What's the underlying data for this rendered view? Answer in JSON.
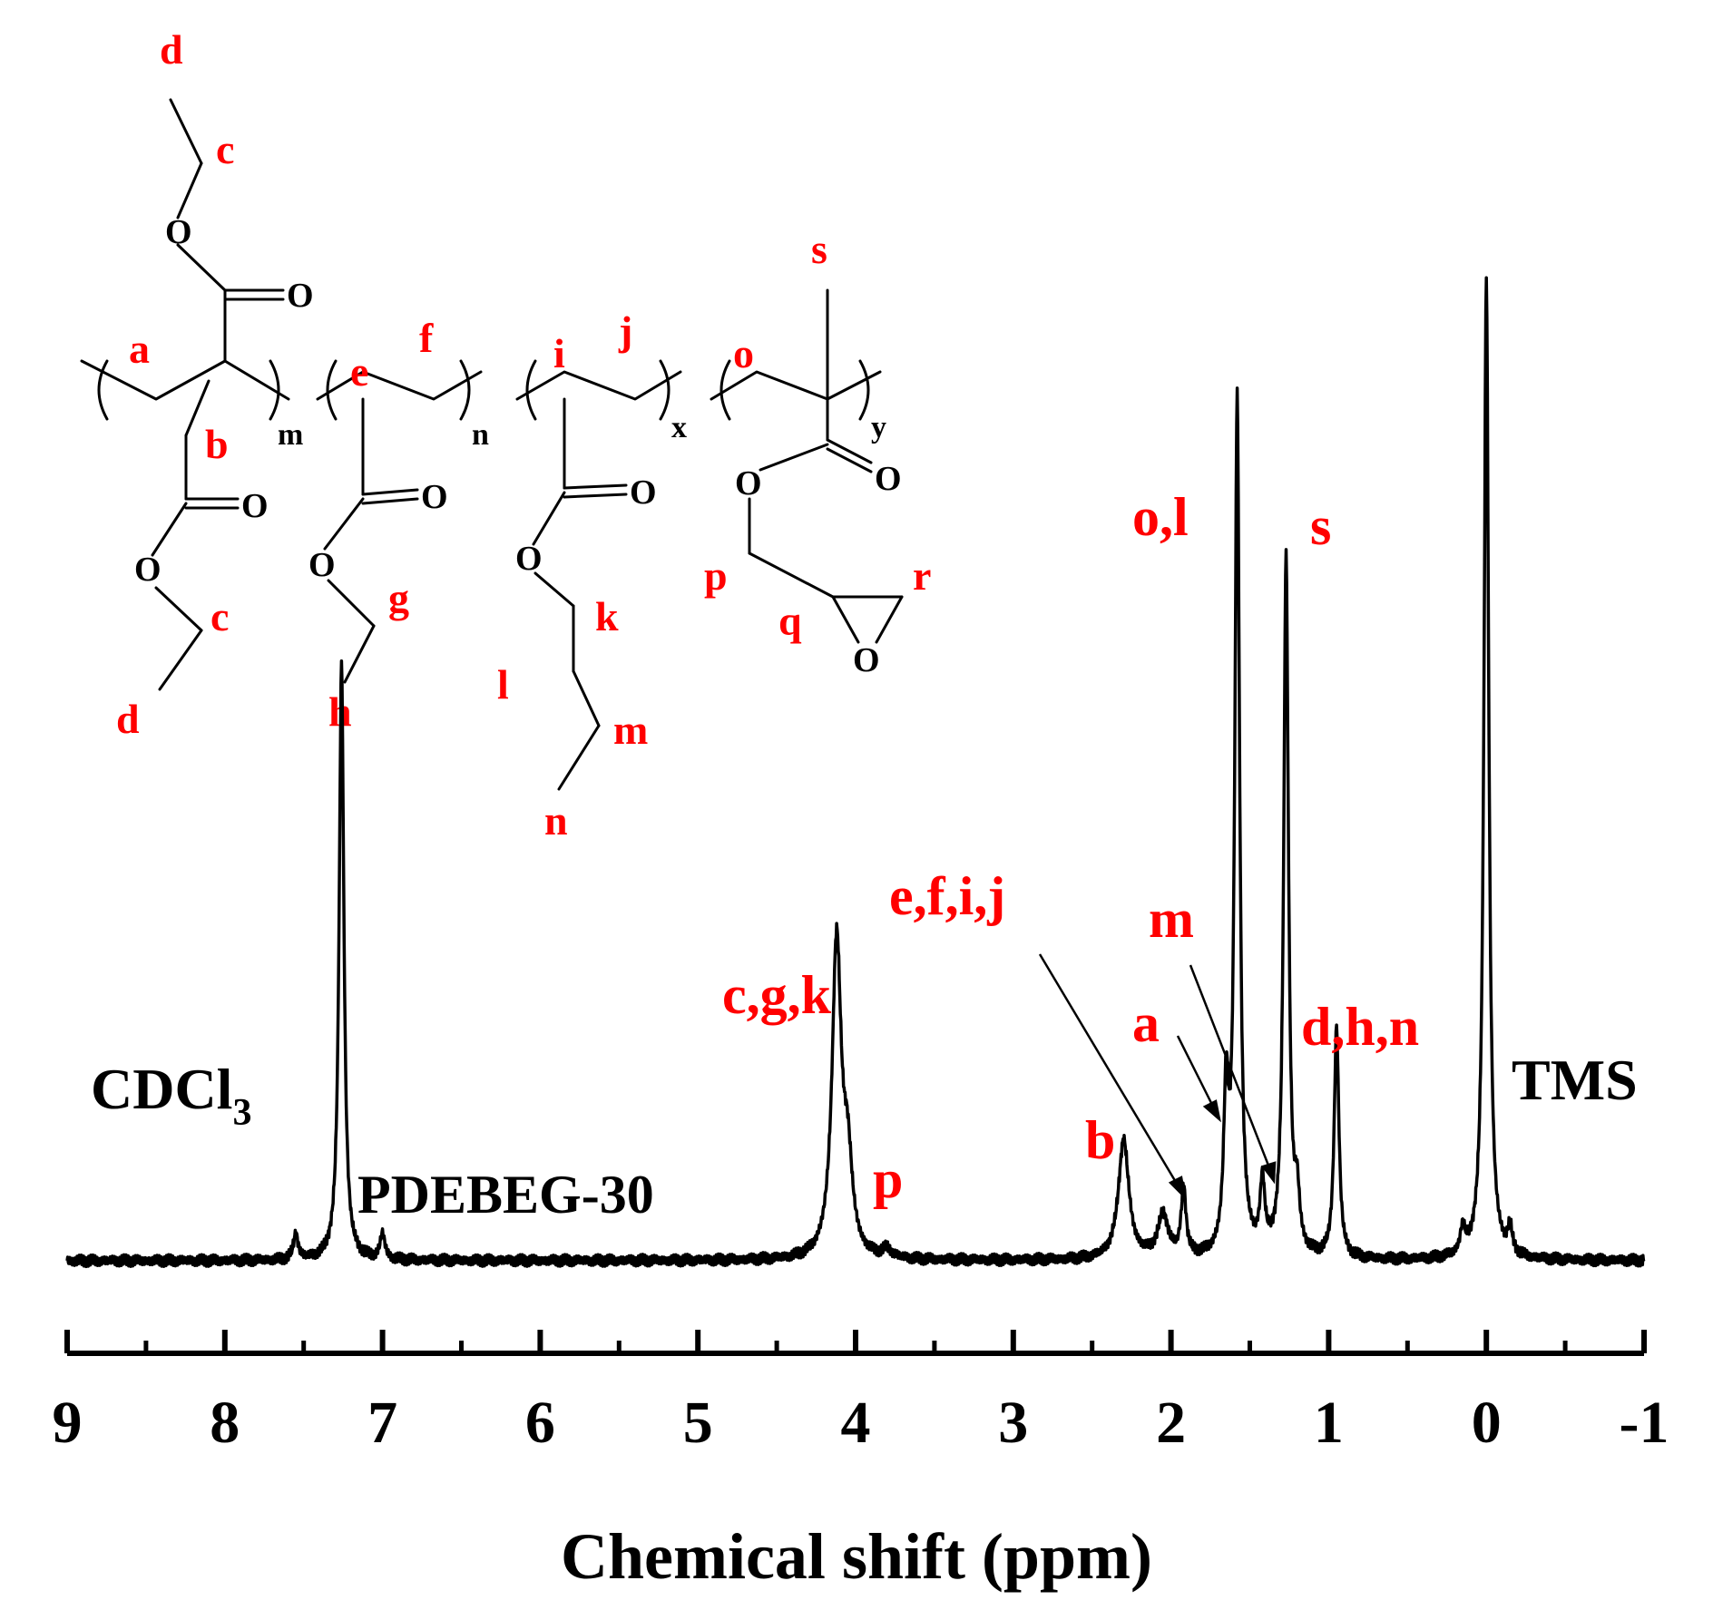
{
  "chart_data": {
    "type": "line",
    "title": "",
    "xlabel": "Chemical shift (ppm)",
    "ylabel": "",
    "xlim": [
      9,
      -1
    ],
    "x_reversed": true,
    "grid": false,
    "legend": "none",
    "xticks": [
      "9",
      "8",
      "7",
      "6",
      "5",
      "4",
      "3",
      "2",
      "1",
      "0",
      "-1"
    ],
    "sample_label": "PDEBEG-30",
    "solvent_label": "CDCl",
    "solvent_subscript": "3",
    "reference_label": "TMS",
    "line_color": "#000000",
    "label_color": "#ff0000",
    "peaks": [
      {
        "x": 7.26,
        "height": 0.7
      },
      {
        "x": 7.55,
        "height": 0.03
      },
      {
        "x": 7.0,
        "height": 0.03
      },
      {
        "x": 4.12,
        "height": 0.37
      },
      {
        "x": 4.05,
        "height": 0.1
      },
      {
        "x": 3.8,
        "height": 0.01
      },
      {
        "x": 2.3,
        "height": 0.14
      },
      {
        "x": 2.05,
        "height": 0.05
      },
      {
        "x": 1.92,
        "height": 0.08
      },
      {
        "x": 1.65,
        "height": 0.18
      },
      {
        "x": 1.58,
        "height": 1.0
      },
      {
        "x": 1.42,
        "height": 0.08
      },
      {
        "x": 1.27,
        "height": 0.82
      },
      {
        "x": 1.2,
        "height": 0.06
      },
      {
        "x": 0.95,
        "height": 0.27
      },
      {
        "x": 0.15,
        "height": 0.03
      },
      {
        "x": 0.0,
        "height": 1.15
      },
      {
        "x": -0.15,
        "height": 0.03
      }
    ],
    "assignments": [
      {
        "label": "c,g,k",
        "x": 4.12
      },
      {
        "label": "p",
        "x": 3.8
      },
      {
        "label": "b",
        "x": 2.3
      },
      {
        "label": "e,f,i,j",
        "x": 1.92
      },
      {
        "label": "a",
        "x": 1.65
      },
      {
        "label": "m",
        "x": 1.42
      },
      {
        "label": "o,l",
        "x": 1.58
      },
      {
        "label": "s",
        "x": 1.27
      },
      {
        "label": "d,h,n",
        "x": 0.95
      }
    ]
  },
  "structure": {
    "atom_O": "O",
    "subscripts": [
      "m",
      "n",
      "x",
      "y"
    ],
    "site_labels": [
      "a",
      "b",
      "c",
      "c",
      "d",
      "d",
      "e",
      "f",
      "g",
      "h",
      "i",
      "j",
      "k",
      "l",
      "m",
      "n",
      "o",
      "p",
      "q",
      "r",
      "s"
    ]
  }
}
